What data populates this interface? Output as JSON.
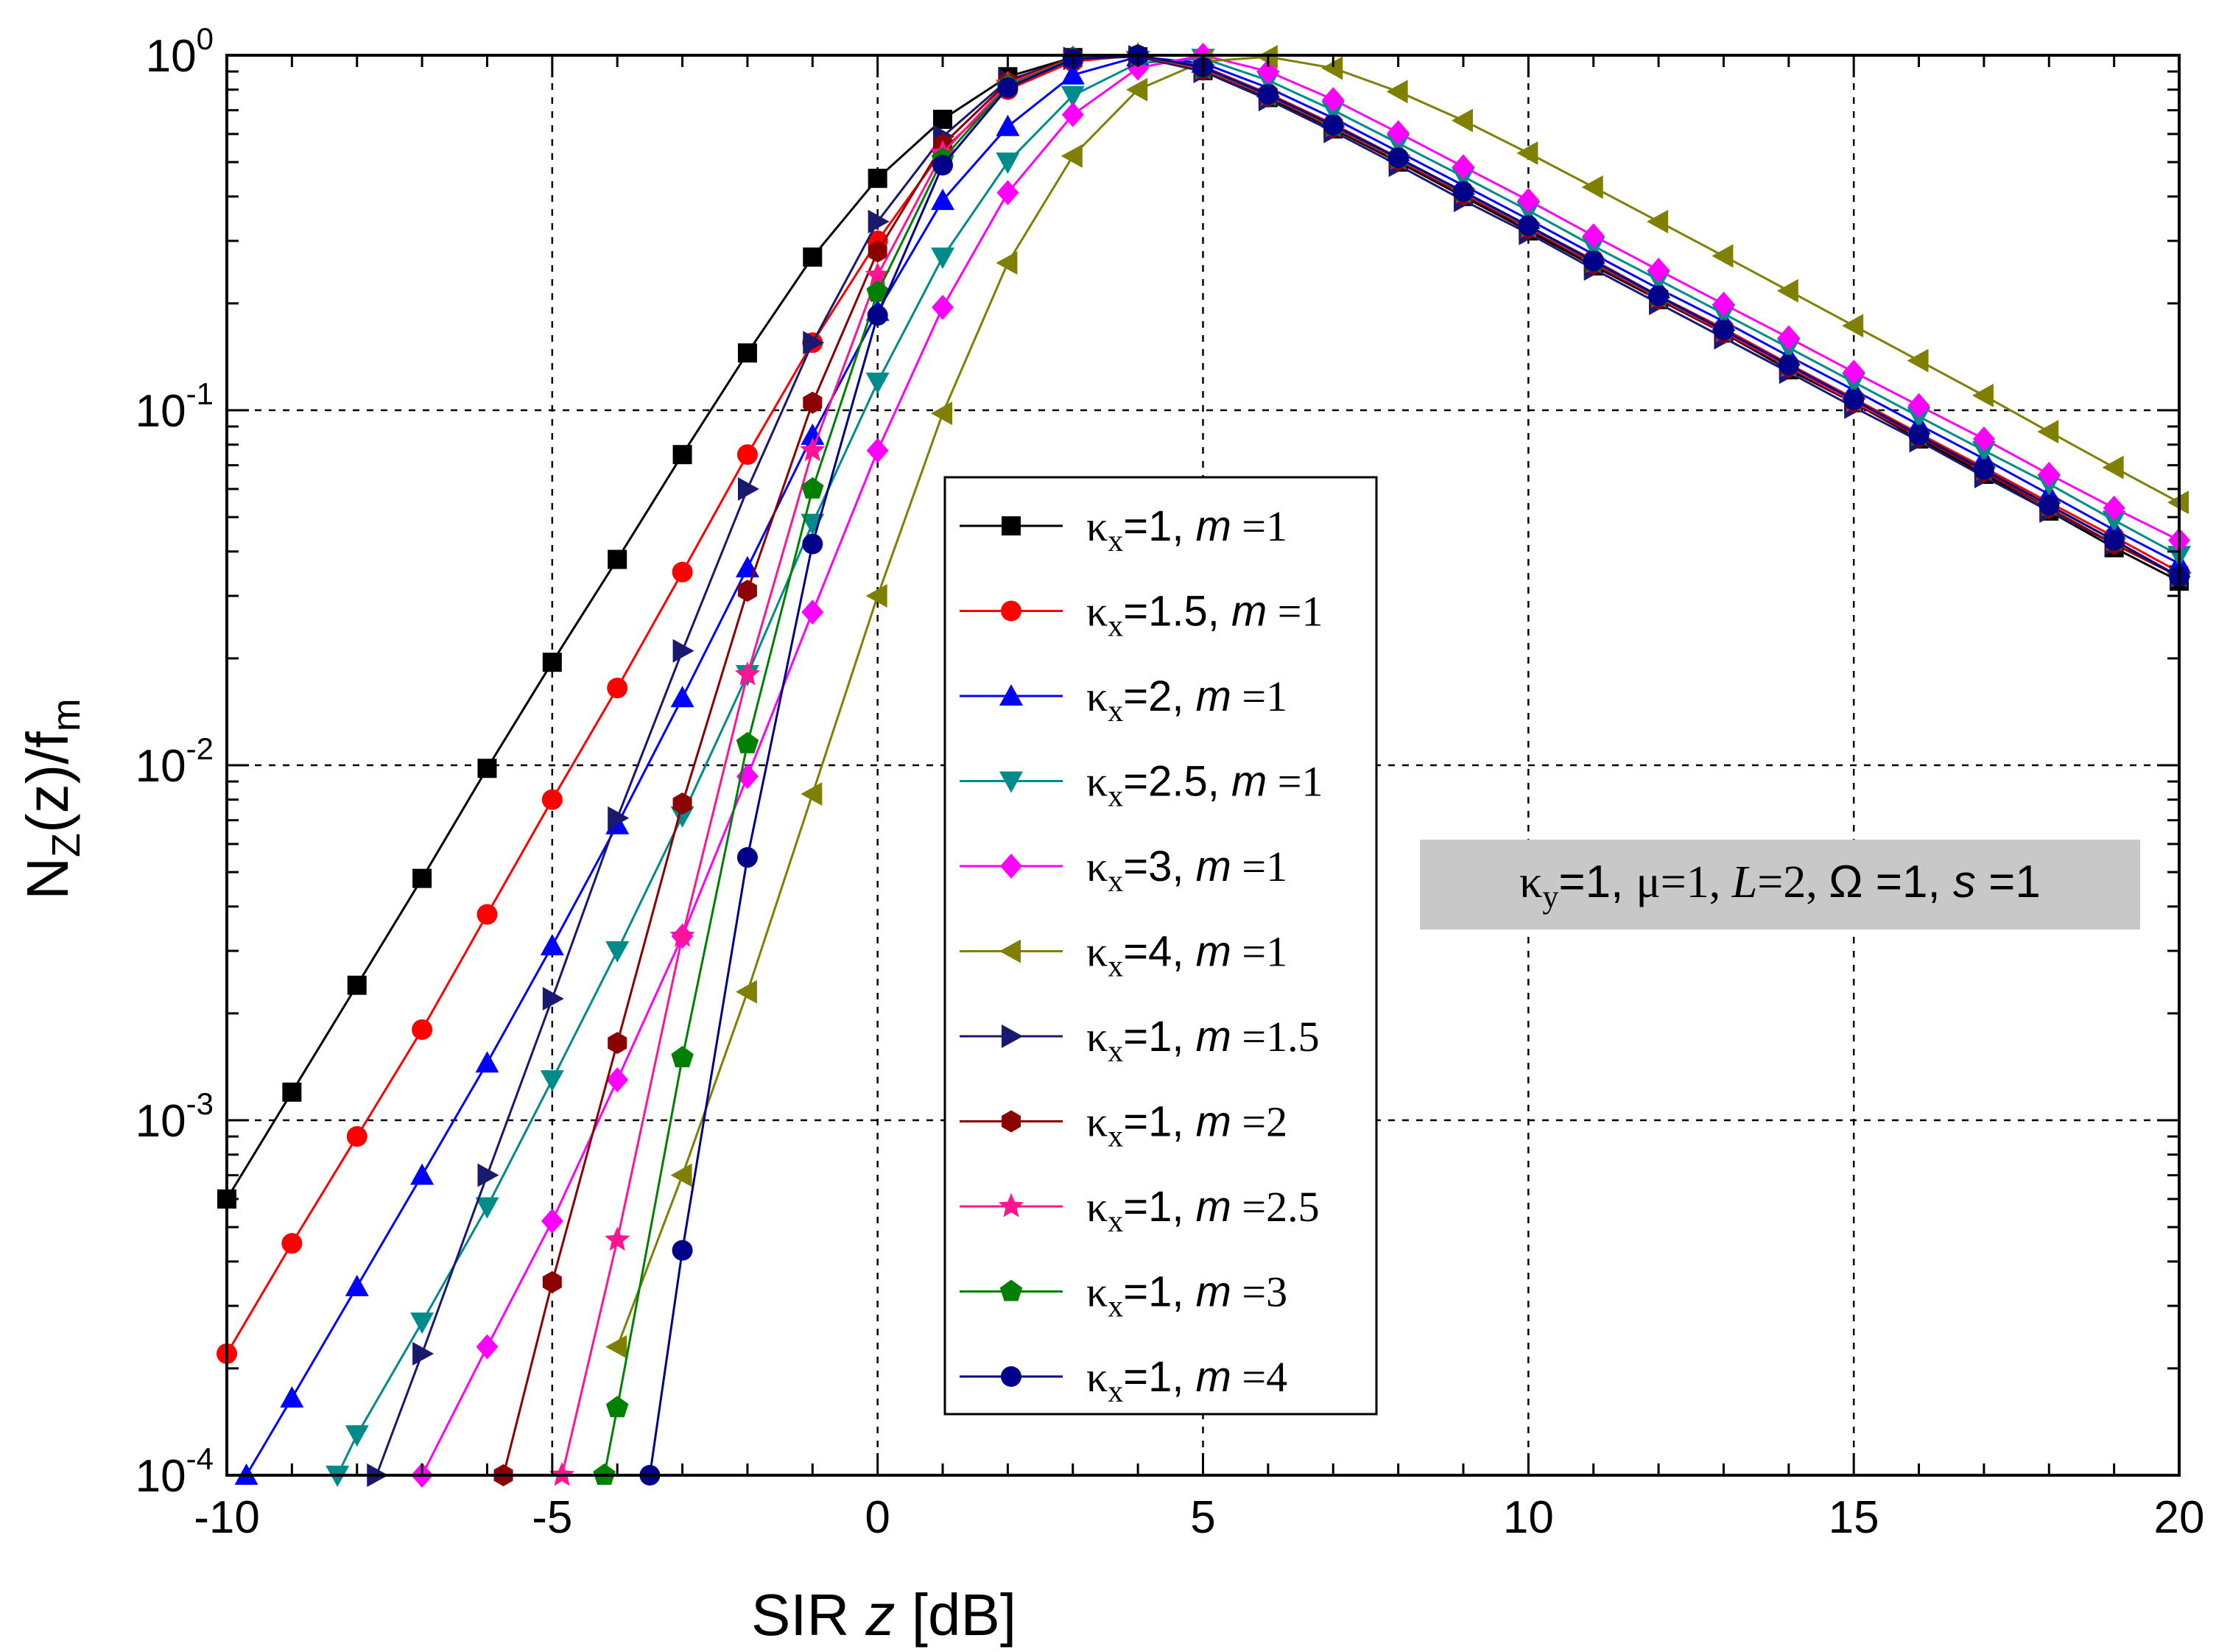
{
  "chart_data": {
    "type": "line",
    "xlabel_prefix": "SIR ",
    "xlabel_var": "z",
    "xlabel_suffix": " [dB]",
    "ylabel_main": "N",
    "ylabel_sub": "Z",
    "ylabel_mid": "(z)/f",
    "ylabel_sub2": "m",
    "xlim": [
      -10,
      20
    ],
    "ylim": [
      0.0001,
      1
    ],
    "yscale": "log",
    "x_ticks": [
      -10,
      -5,
      0,
      5,
      10,
      15,
      20
    ],
    "x_tick_labels": [
      "-10",
      "-5",
      "0",
      "5",
      "10",
      "15",
      "20"
    ],
    "y_ticks": [
      0.0001,
      0.001,
      0.01,
      0.1,
      1
    ],
    "y_tick_base": "10",
    "y_tick_exponents": [
      "-4",
      "-3",
      "-2",
      "-1",
      "0"
    ],
    "grid": true,
    "legend_position": "center",
    "annotation": {
      "kappa_y": "κ",
      "kappa_y_sub": "y",
      "kappa_y_val": "=1, ",
      "mu": "μ=1, ",
      "L_var": "L",
      "L_val": "=2, ",
      "omega": "Ω =1, ",
      "s_var": "s",
      "s_val": " =1"
    },
    "series": [
      {
        "name": "κx=1, m=1",
        "kappa": "κ",
        "sub": "x",
        "kappa_val": "=1, ",
        "m_var": "m",
        "m_val": " =1",
        "color": "#000000",
        "marker": "square",
        "x": [
          -10,
          -9,
          -8,
          -7,
          -6,
          -5,
          -4,
          -3,
          -2,
          -1,
          0,
          1,
          2,
          3,
          4,
          5,
          6,
          7,
          8,
          9,
          10,
          11,
          12,
          13,
          14,
          15,
          16,
          17,
          18,
          19,
          20
        ],
        "y": [
          0.0006,
          0.0012,
          0.0024,
          0.0048,
          0.0098,
          0.0195,
          0.038,
          0.075,
          0.145,
          0.27,
          0.45,
          0.66,
          0.87,
          0.985,
          0.99,
          0.905,
          0.76,
          0.62,
          0.5,
          0.4,
          0.32,
          0.255,
          0.205,
          0.165,
          0.13,
          0.105,
          0.083,
          0.066,
          0.052,
          0.041,
          0.033
        ]
      },
      {
        "name": "κx=1.5, m=1",
        "kappa": "κ",
        "sub": "x",
        "kappa_val": "=1.5, ",
        "m_var": "m",
        "m_val": " =1",
        "color": "#ff0000",
        "marker": "circle",
        "x": [
          -10,
          -9,
          -8,
          -7,
          -6,
          -5,
          -4,
          -3,
          -2,
          -1,
          0,
          1,
          2,
          3,
          4,
          5,
          6,
          7,
          8,
          9,
          10,
          11,
          12,
          13,
          14,
          15,
          16,
          17,
          18,
          19,
          20
        ],
        "y": [
          0.00022,
          0.00045,
          0.0009,
          0.0018,
          0.0038,
          0.008,
          0.0165,
          0.035,
          0.075,
          0.155,
          0.3,
          0.54,
          0.8,
          0.96,
          1.0,
          0.93,
          0.78,
          0.64,
          0.515,
          0.41,
          0.33,
          0.265,
          0.21,
          0.17,
          0.135,
          0.108,
          0.086,
          0.069,
          0.055,
          0.044,
          0.035
        ]
      },
      {
        "name": "κx=2, m=1",
        "kappa": "κ",
        "sub": "x",
        "kappa_val": "=2, ",
        "m_var": "m",
        "m_val": " =1",
        "color": "#0000ff",
        "marker": "triangle-up",
        "x": [
          -9.7,
          -9,
          -8,
          -7,
          -6,
          -5,
          -4,
          -3,
          -2,
          -1,
          0,
          1,
          2,
          3,
          4,
          5,
          6,
          7,
          8,
          9,
          10,
          11,
          12,
          13,
          14,
          15,
          16,
          17,
          18,
          19,
          20
        ],
        "y": [
          0.0001,
          0.000165,
          0.00034,
          0.0007,
          0.00145,
          0.0031,
          0.0068,
          0.0155,
          0.036,
          0.085,
          0.19,
          0.39,
          0.63,
          0.88,
          0.99,
          0.95,
          0.81,
          0.665,
          0.535,
          0.43,
          0.345,
          0.275,
          0.22,
          0.178,
          0.142,
          0.114,
          0.091,
          0.073,
          0.058,
          0.046,
          0.037
        ]
      },
      {
        "name": "κx=2.5, m=1",
        "kappa": "κ",
        "sub": "x",
        "kappa_val": "=2.5, ",
        "m_var": "m",
        "m_val": " =1",
        "color": "#008b8b",
        "marker": "triangle-down",
        "x": [
          -8.3,
          -8,
          -7,
          -6,
          -5,
          -4,
          -3,
          -2,
          -1,
          0,
          1,
          2,
          3,
          4,
          5,
          6,
          7,
          8,
          9,
          10,
          11,
          12,
          13,
          14,
          15,
          16,
          17,
          18,
          19,
          20
        ],
        "y": [
          0.0001,
          0.00013,
          0.00027,
          0.00057,
          0.0013,
          0.003,
          0.0072,
          0.018,
          0.048,
          0.12,
          0.27,
          0.5,
          0.77,
          0.95,
          0.98,
          0.85,
          0.7,
          0.565,
          0.455,
          0.365,
          0.29,
          0.233,
          0.187,
          0.15,
          0.12,
          0.096,
          0.077,
          0.062,
          0.049,
          0.039
        ]
      },
      {
        "name": "κx=3, m=1",
        "kappa": "κ",
        "sub": "x",
        "kappa_val": "=3, ",
        "m_var": "m",
        "m_val": " =1",
        "color": "#ff00ff",
        "marker": "diamond",
        "x": [
          -7,
          -6,
          -5,
          -4,
          -3,
          -2,
          -1,
          0,
          1,
          2,
          3,
          4,
          5,
          6,
          7,
          8,
          9,
          10,
          11,
          12,
          13,
          14,
          15,
          16,
          17,
          18,
          19,
          20
        ],
        "y": [
          0.0001,
          0.00023,
          0.00052,
          0.0013,
          0.0033,
          0.0093,
          0.027,
          0.077,
          0.195,
          0.41,
          0.68,
          0.92,
          1.0,
          0.9,
          0.75,
          0.605,
          0.485,
          0.39,
          0.31,
          0.248,
          0.199,
          0.16,
          0.128,
          0.103,
          0.083,
          0.066,
          0.053,
          0.043
        ]
      },
      {
        "name": "κx=4, m=1",
        "kappa": "κ",
        "sub": "x",
        "kappa_val": "=4, ",
        "m_var": "m",
        "m_val": " =1",
        "color": "#808000",
        "marker": "triangle-left",
        "x": [
          -4,
          -3,
          -2,
          -1,
          0,
          1,
          2,
          3,
          4,
          5,
          6,
          7,
          8,
          9,
          10,
          11,
          12,
          13,
          14,
          15,
          16,
          17,
          18,
          19,
          20
        ],
        "y": [
          0.00023,
          0.0007,
          0.0023,
          0.0083,
          0.03,
          0.098,
          0.26,
          0.52,
          0.8,
          0.96,
          0.99,
          0.92,
          0.79,
          0.655,
          0.53,
          0.425,
          0.34,
          0.272,
          0.217,
          0.173,
          0.138,
          0.11,
          0.087,
          0.069,
          0.055
        ]
      },
      {
        "name": "κx=1, m=1.5",
        "kappa": "κ",
        "sub": "x",
        "kappa_val": "=1, ",
        "m_var": "m",
        "m_val": " =1.5",
        "color": "#191970",
        "marker": "triangle-right",
        "x": [
          -7.7,
          -7,
          -6,
          -5,
          -4,
          -3,
          -2,
          -1,
          0,
          1,
          2,
          3,
          4,
          5,
          6,
          7,
          8,
          9,
          10,
          11,
          12,
          13,
          14,
          15,
          16,
          17,
          18,
          19,
          20
        ],
        "y": [
          0.0001,
          0.00022,
          0.0007,
          0.0022,
          0.0071,
          0.021,
          0.06,
          0.155,
          0.34,
          0.59,
          0.85,
          0.98,
          0.99,
          0.9,
          0.75,
          0.61,
          0.49,
          0.39,
          0.315,
          0.25,
          0.2,
          0.16,
          0.128,
          0.102,
          0.082,
          0.065,
          0.052,
          0.042,
          0.034
        ]
      },
      {
        "name": "κx=1, m=2",
        "kappa": "κ",
        "sub": "x",
        "kappa_val": "=1, ",
        "m_var": "m",
        "m_val": " =2",
        "color": "#8b0000",
        "marker": "hexagon",
        "x": [
          -5.75,
          -5,
          -4,
          -3,
          -2,
          -1,
          0,
          1,
          2,
          3,
          4,
          5,
          6,
          7,
          8,
          9,
          10,
          11,
          12,
          13,
          14,
          15,
          16,
          17,
          18,
          19,
          20
        ],
        "y": [
          0.0001,
          0.00035,
          0.00165,
          0.0078,
          0.031,
          0.105,
          0.28,
          0.56,
          0.84,
          0.985,
          0.995,
          0.91,
          0.765,
          0.625,
          0.505,
          0.405,
          0.325,
          0.258,
          0.206,
          0.165,
          0.132,
          0.105,
          0.084,
          0.067,
          0.053,
          0.042,
          0.034
        ]
      },
      {
        "name": "κx=1, m=2.5",
        "kappa": "κ",
        "sub": "x",
        "kappa_val": "=1, ",
        "m_var": "m",
        "m_val": " =2.5",
        "color": "#ff1493",
        "marker": "star",
        "x": [
          -4.85,
          -4,
          -3,
          -2,
          -1,
          0,
          1,
          2,
          3,
          4,
          5,
          6,
          7,
          8,
          9,
          10,
          11,
          12,
          13,
          14,
          15,
          16,
          17,
          18,
          19,
          20
        ],
        "y": [
          0.0001,
          0.00046,
          0.0033,
          0.018,
          0.077,
          0.24,
          0.53,
          0.83,
          0.98,
          1.0,
          0.915,
          0.77,
          0.63,
          0.51,
          0.41,
          0.328,
          0.261,
          0.208,
          0.167,
          0.133,
          0.106,
          0.085,
          0.068,
          0.054,
          0.043,
          0.034
        ]
      },
      {
        "name": "κx=1, m=3",
        "kappa": "κ",
        "sub": "x",
        "kappa_val": "=1, ",
        "m_var": "m",
        "m_val": " =3",
        "color": "#008000",
        "marker": "pentagon",
        "x": [
          -4.2,
          -4,
          -3,
          -2,
          -1,
          0,
          1,
          2,
          3,
          4,
          5,
          6,
          7,
          8,
          9,
          10,
          11,
          12,
          13,
          14,
          15,
          16,
          17,
          18,
          19,
          20
        ],
        "y": [
          0.0001,
          0.000155,
          0.0015,
          0.0115,
          0.06,
          0.215,
          0.51,
          0.82,
          0.98,
          1.0,
          0.92,
          0.772,
          0.632,
          0.512,
          0.412,
          0.33,
          0.262,
          0.209,
          0.168,
          0.134,
          0.107,
          0.085,
          0.068,
          0.054,
          0.043,
          0.034
        ]
      },
      {
        "name": "κx=1, m=4",
        "kappa": "κ",
        "sub": "x",
        "kappa_val": "=1, ",
        "m_var": "m",
        "m_val": " =4",
        "color": "#00008b",
        "marker": "dot",
        "x": [
          -3.5,
          -3,
          -2,
          -1,
          0,
          1,
          2,
          3,
          4,
          5,
          6,
          7,
          8,
          9,
          10,
          11,
          12,
          13,
          14,
          15,
          16,
          17,
          18,
          19,
          20
        ],
        "y": [
          0.0001,
          0.00043,
          0.0055,
          0.042,
          0.185,
          0.49,
          0.81,
          0.975,
          1.0,
          0.925,
          0.775,
          0.635,
          0.514,
          0.413,
          0.331,
          0.263,
          0.21,
          0.168,
          0.134,
          0.107,
          0.085,
          0.068,
          0.054,
          0.043,
          0.034
        ]
      }
    ]
  }
}
